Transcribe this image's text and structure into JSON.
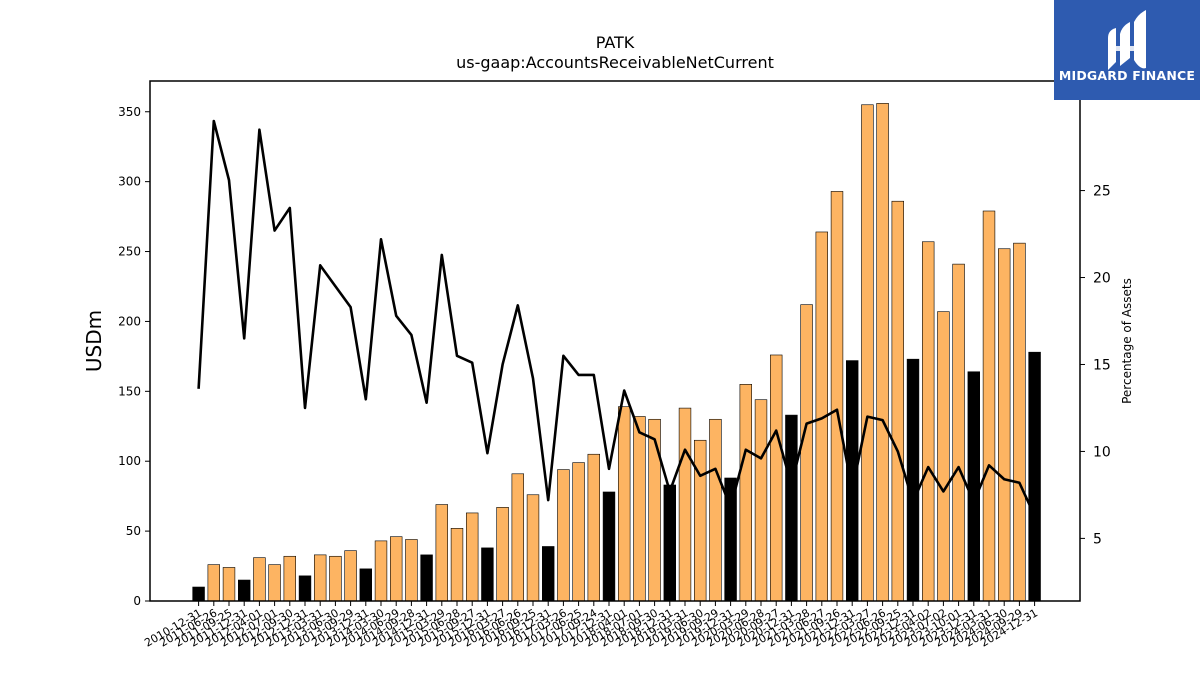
{
  "logo": {
    "text": "MIDGARD FINANCE",
    "bg_color": "#2e5bb0"
  },
  "chart_data": {
    "type": "bar",
    "title": "PATK",
    "subtitle": "us-gaap:AccountsReceivableNetCurrent",
    "ylabel": "USDm",
    "y2label": "Percentage of Assets",
    "ylim": [
      0,
      372
    ],
    "y2lim": [
      1.4,
      31.3
    ],
    "yticks": [
      0,
      50,
      100,
      150,
      200,
      250,
      300,
      350
    ],
    "y2ticks": [
      5,
      10,
      15,
      20,
      25
    ],
    "colors": {
      "bar_quarter": "#fdb462",
      "bar_annual": "#000000",
      "line": "#000000"
    },
    "categories": [
      "2010-12-31",
      "2011-06-26",
      "2011-09-25",
      "2011-12-31",
      "2012-04-01",
      "2012-07-01",
      "2012-09-30",
      "2012-12-31",
      "2013-03-31",
      "2013-06-30",
      "2013-09-29",
      "2013-12-31",
      "2014-03-30",
      "2014-06-29",
      "2014-09-28",
      "2014-12-31",
      "2015-03-29",
      "2015-06-28",
      "2015-09-27",
      "2015-12-31",
      "2016-03-27",
      "2016-06-26",
      "2016-09-25",
      "2016-12-31",
      "2017-03-26",
      "2017-06-25",
      "2017-09-24",
      "2017-12-31",
      "2018-04-01",
      "2018-07-01",
      "2018-09-30",
      "2018-12-31",
      "2019-03-31",
      "2019-06-30",
      "2019-09-29",
      "2019-12-31",
      "2020-03-29",
      "2020-06-28",
      "2020-09-27",
      "2020-12-31",
      "2021-03-28",
      "2021-06-27",
      "2021-09-26",
      "2021-12-31",
      "2022-03-27",
      "2022-06-26",
      "2022-09-25",
      "2022-12-31",
      "2023-04-02",
      "2023-07-02",
      "2023-10-01",
      "2023-12-31",
      "2024-03-31",
      "2024-06-30",
      "2024-09-29",
      "2024-12-31"
    ],
    "series": [
      {
        "name": "AccountsReceivableNetCurrent",
        "axis": "left",
        "values": [
          10,
          26,
          24,
          15,
          31,
          26,
          32,
          18,
          33,
          32,
          36,
          23,
          43,
          46,
          44,
          33,
          69,
          52,
          63,
          38,
          67,
          91,
          76,
          39,
          94,
          99,
          105,
          78,
          139,
          132,
          130,
          83,
          138,
          115,
          130,
          88,
          155,
          144,
          176,
          133,
          212,
          264,
          293,
          172,
          355,
          356,
          286,
          173,
          257,
          207,
          241,
          164,
          279,
          252,
          256,
          178
        ],
        "annual": [
          true,
          false,
          false,
          true,
          false,
          false,
          false,
          true,
          false,
          false,
          false,
          true,
          false,
          false,
          false,
          true,
          false,
          false,
          false,
          true,
          false,
          false,
          false,
          true,
          false,
          false,
          false,
          true,
          false,
          false,
          false,
          true,
          false,
          false,
          false,
          true,
          false,
          false,
          false,
          true,
          false,
          false,
          false,
          true,
          false,
          false,
          false,
          true,
          false,
          false,
          false,
          true,
          false,
          false,
          false,
          true
        ]
      },
      {
        "name": "Percentage of Assets",
        "axis": "right",
        "values": [
          13.6,
          29.0,
          25.6,
          16.5,
          28.5,
          22.7,
          24.0,
          12.5,
          20.7,
          19.5,
          18.3,
          13.0,
          22.2,
          17.8,
          16.7,
          12.8,
          21.3,
          15.5,
          15.1,
          9.9,
          15.0,
          18.4,
          14.2,
          7.2,
          15.5,
          14.4,
          14.4,
          9.0,
          13.5,
          11.1,
          10.7,
          7.7,
          10.1,
          8.6,
          9.0,
          6.8,
          10.1,
          9.6,
          11.2,
          8.1,
          11.6,
          11.9,
          12.4,
          7.8,
          12.0,
          11.8,
          10.0,
          7.1,
          9.1,
          7.7,
          9.1,
          7.1,
          9.2,
          8.4,
          8.2,
          6.3
        ]
      }
    ]
  }
}
